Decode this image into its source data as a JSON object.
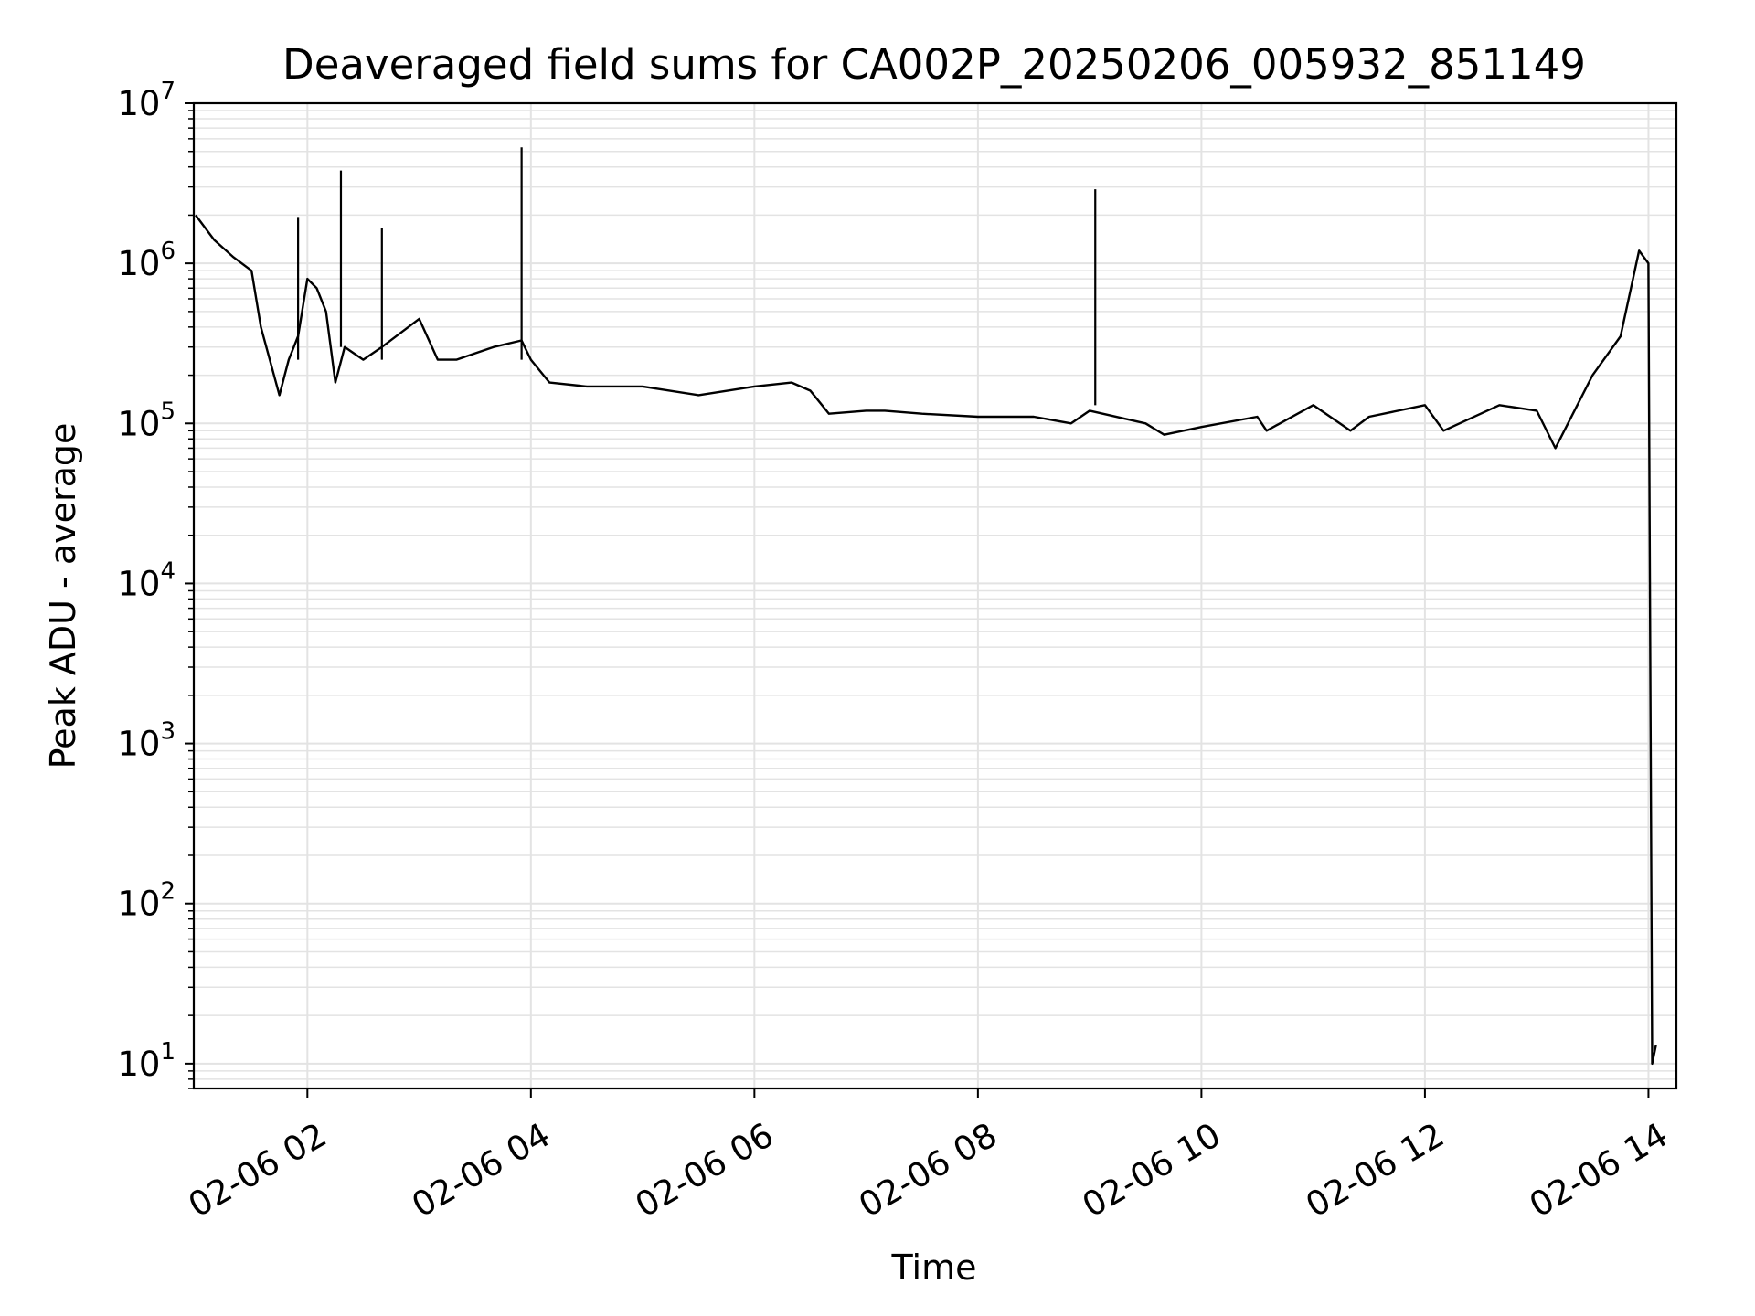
{
  "chart_data": {
    "type": "line",
    "title": "Deaveraged field sums for CA002P_20250206_005932_851149",
    "xlabel": "Time",
    "ylabel": "Peak ADU - average",
    "yscale": "log",
    "xlim": [
      "02-06 00:59",
      "02-06 14:15"
    ],
    "ylim": [
      7,
      10000000
    ],
    "grid": true,
    "line_color": "#000000",
    "grid_color": "#e3e3e3",
    "xticks": [
      {
        "label": "02-06 02",
        "value": "02-06 02:00"
      },
      {
        "label": "02-06 04",
        "value": "02-06 04:00"
      },
      {
        "label": "02-06 06",
        "value": "02-06 06:00"
      },
      {
        "label": "02-06 08",
        "value": "02-06 08:00"
      },
      {
        "label": "02-06 10",
        "value": "02-06 10:00"
      },
      {
        "label": "02-06 12",
        "value": "02-06 12:00"
      },
      {
        "label": "02-06 14",
        "value": "02-06 14:00"
      }
    ],
    "yticks": [
      {
        "base": "10",
        "exp": "1",
        "value": 10
      },
      {
        "base": "10",
        "exp": "2",
        "value": 100
      },
      {
        "base": "10",
        "exp": "3",
        "value": 1000
      },
      {
        "base": "10",
        "exp": "4",
        "value": 10000
      },
      {
        "base": "10",
        "exp": "5",
        "value": 100000
      },
      {
        "base": "10",
        "exp": "6",
        "value": 1000000
      },
      {
        "base": "10",
        "exp": "7",
        "value": 10000000
      }
    ],
    "series": [
      {
        "x": [
          "02-06 01:00",
          "02-06 01:10",
          "02-06 01:20",
          "02-06 01:30",
          "02-06 01:35",
          "02-06 01:45",
          "02-06 01:50",
          "02-06 01:55",
          "02-06 02:00",
          "02-06 02:05",
          "02-06 02:10",
          "02-06 02:15",
          "02-06 02:20",
          "02-06 02:30",
          "02-06 02:40",
          "02-06 03:00",
          "02-06 03:10",
          "02-06 03:20",
          "02-06 03:40",
          "02-06 03:55",
          "02-06 04:00",
          "02-06 04:10",
          "02-06 04:30",
          "02-06 05:00",
          "02-06 05:30",
          "02-06 06:00",
          "02-06 06:20",
          "02-06 06:30",
          "02-06 06:40",
          "02-06 07:00",
          "02-06 07:10",
          "02-06 07:30",
          "02-06 08:00",
          "02-06 08:30",
          "02-06 08:50",
          "02-06 09:00",
          "02-06 09:30",
          "02-06 09:40",
          "02-06 10:00",
          "02-06 10:30",
          "02-06 10:35",
          "02-06 11:00",
          "02-06 11:20",
          "02-06 11:30",
          "02-06 12:00",
          "02-06 12:10",
          "02-06 12:40",
          "02-06 13:00",
          "02-06 13:10",
          "02-06 13:30",
          "02-06 13:45",
          "02-06 13:55",
          "02-06 14:00",
          "02-06 14:02",
          "02-06 14:04"
        ],
        "y": [
          2000000,
          1400000,
          1100000,
          900000,
          400000,
          150000,
          250000,
          350000,
          800000,
          700000,
          500000,
          180000,
          300000,
          250000,
          300000,
          450000,
          250000,
          250000,
          300000,
          330000,
          250000,
          180000,
          170000,
          170000,
          150000,
          170000,
          180000,
          160000,
          115000,
          120000,
          120000,
          115000,
          110000,
          110000,
          100000,
          120000,
          100000,
          85000,
          95000,
          110000,
          90000,
          130000,
          90000,
          110000,
          130000,
          90000,
          130000,
          120000,
          70000,
          200000,
          350000,
          1200000,
          1000000,
          10,
          13
        ]
      }
    ],
    "spikes": [
      {
        "x": "02-06 01:55",
        "low": 250000,
        "high": 1950000
      },
      {
        "x": "02-06 02:18",
        "low": 300000,
        "high": 3800000
      },
      {
        "x": "02-06 02:40",
        "low": 250000,
        "high": 1650000
      },
      {
        "x": "02-06 03:55",
        "low": 250000,
        "high": 5300000
      },
      {
        "x": "02-06 09:03",
        "low": 130000,
        "high": 2900000
      }
    ]
  }
}
